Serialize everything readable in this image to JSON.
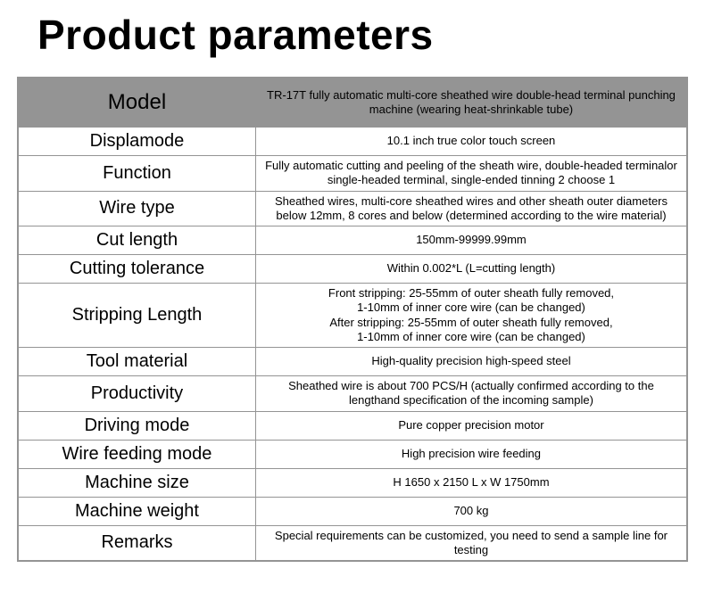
{
  "page": {
    "title": "Product parameters"
  },
  "table": {
    "header_bg": "#949494",
    "border_color": "#949494",
    "text_color": "#000000",
    "label_fontsize": 20,
    "header_label_fontsize": 24,
    "value_fontsize": 13,
    "label_col_width": 267,
    "value_col_width": 485,
    "rows": [
      {
        "label": "Model",
        "value": "TR-17T fully automatic multi-core sheathed wire double-head terminal punching machine (wearing heat-shrinkable tube)",
        "header": true
      },
      {
        "label": "Displamode",
        "value": "10.1 inch true color touch screen"
      },
      {
        "label": "Function",
        "value": "Fully automatic cutting and peeling of the sheath wire, double-headed terminalor single-headed terminal, single-ended tinning 2 choose 1"
      },
      {
        "label": "Wire type",
        "value": "Sheathed wires, multi-core sheathed wires and other sheath outer diameters below 12mm, 8 cores and below (determined according to the wire material)"
      },
      {
        "label": "Cut length",
        "value": "150mm-99999.99mm"
      },
      {
        "label": "Cutting tolerance",
        "value": "Within 0.002*L (L=cutting length)"
      },
      {
        "label": "Stripping Length",
        "value": "Front stripping: 25-55mm of outer sheath fully removed,\n1-10mm of inner core wire (can be changed)\nAfter stripping: 25-55mm of outer sheath fully removed,\n1-10mm of inner core wire (can be changed)"
      },
      {
        "label": "Tool material",
        "value": "High-quality precision high-speed steel"
      },
      {
        "label": "Productivity",
        "value": "Sheathed wire is about 700 PCS/H (actually confirmed according to the lengthand specification of the incoming sample)"
      },
      {
        "label": "Driving mode",
        "value": "Pure copper precision motor"
      },
      {
        "label": "Wire feeding mode",
        "value": "High precision wire feeding"
      },
      {
        "label": "Machine size",
        "value": "H 1650 x 2150 L x W 1750mm"
      },
      {
        "label": "Machine weight",
        "value": "700 kg"
      },
      {
        "label": "Remarks",
        "value": "Special requirements can be customized, you need to send a sample line for testing"
      }
    ]
  }
}
